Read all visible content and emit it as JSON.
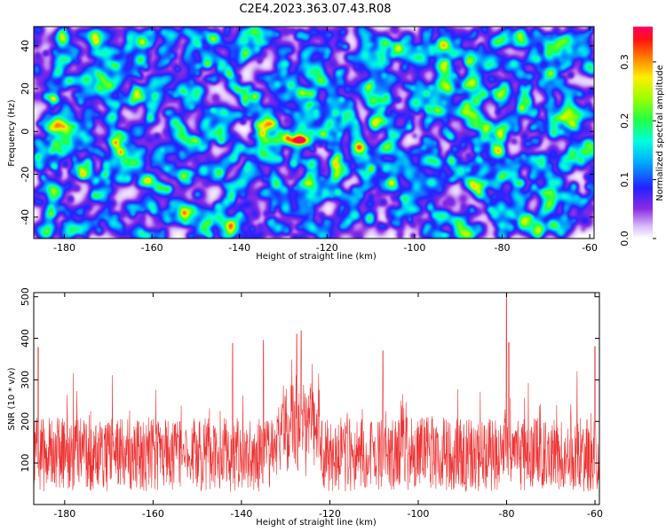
{
  "title": "C2E4.2023.363.07.43.R08",
  "chart_data": [
    {
      "type": "heatmap",
      "xlabel": "Height of straight line (km)",
      "ylabel": "Frequency (Hz)",
      "xlim": [
        -187,
        -59
      ],
      "ylim": [
        -50,
        49
      ],
      "xticks": [
        -180,
        -160,
        -140,
        -120,
        -100,
        -80,
        -60
      ],
      "yticks": [
        -40,
        -20,
        0,
        20,
        40
      ],
      "colorbar": {
        "label": "Normalized spectral amplitude",
        "range": [
          0,
          0.36
        ],
        "ticks": [
          0.0,
          0.1,
          0.2,
          0.3
        ],
        "colormap": "white-purple-blue-cyan-green-yellow-red-magenta"
      },
      "peak": {
        "x": -127,
        "y": -4,
        "value": 0.36
      },
      "grid": false
    },
    {
      "type": "line",
      "xlabel": "Height of straight line (km)",
      "ylabel": "SNR (10 * v/v)",
      "xlim": [
        -187,
        -59
      ],
      "ylim": [
        0,
        510
      ],
      "xticks": [
        -180,
        -160,
        -140,
        -120,
        -100,
        -80,
        -60
      ],
      "yticks": [
        100,
        200,
        300,
        400,
        500
      ],
      "color": "#ee3333",
      "baseline_mean": 120,
      "peaks": [
        {
          "x": -80,
          "y": 510
        },
        {
          "x": -126.5,
          "y": 418
        },
        {
          "x": -127.5,
          "y": 410
        },
        {
          "x": -135,
          "y": 395
        },
        {
          "x": -142,
          "y": 388
        },
        {
          "x": -186,
          "y": 378
        },
        {
          "x": -79.5,
          "y": 390
        },
        {
          "x": -60,
          "y": 380
        },
        {
          "x": -108,
          "y": 370
        }
      ],
      "grid": false
    }
  ]
}
